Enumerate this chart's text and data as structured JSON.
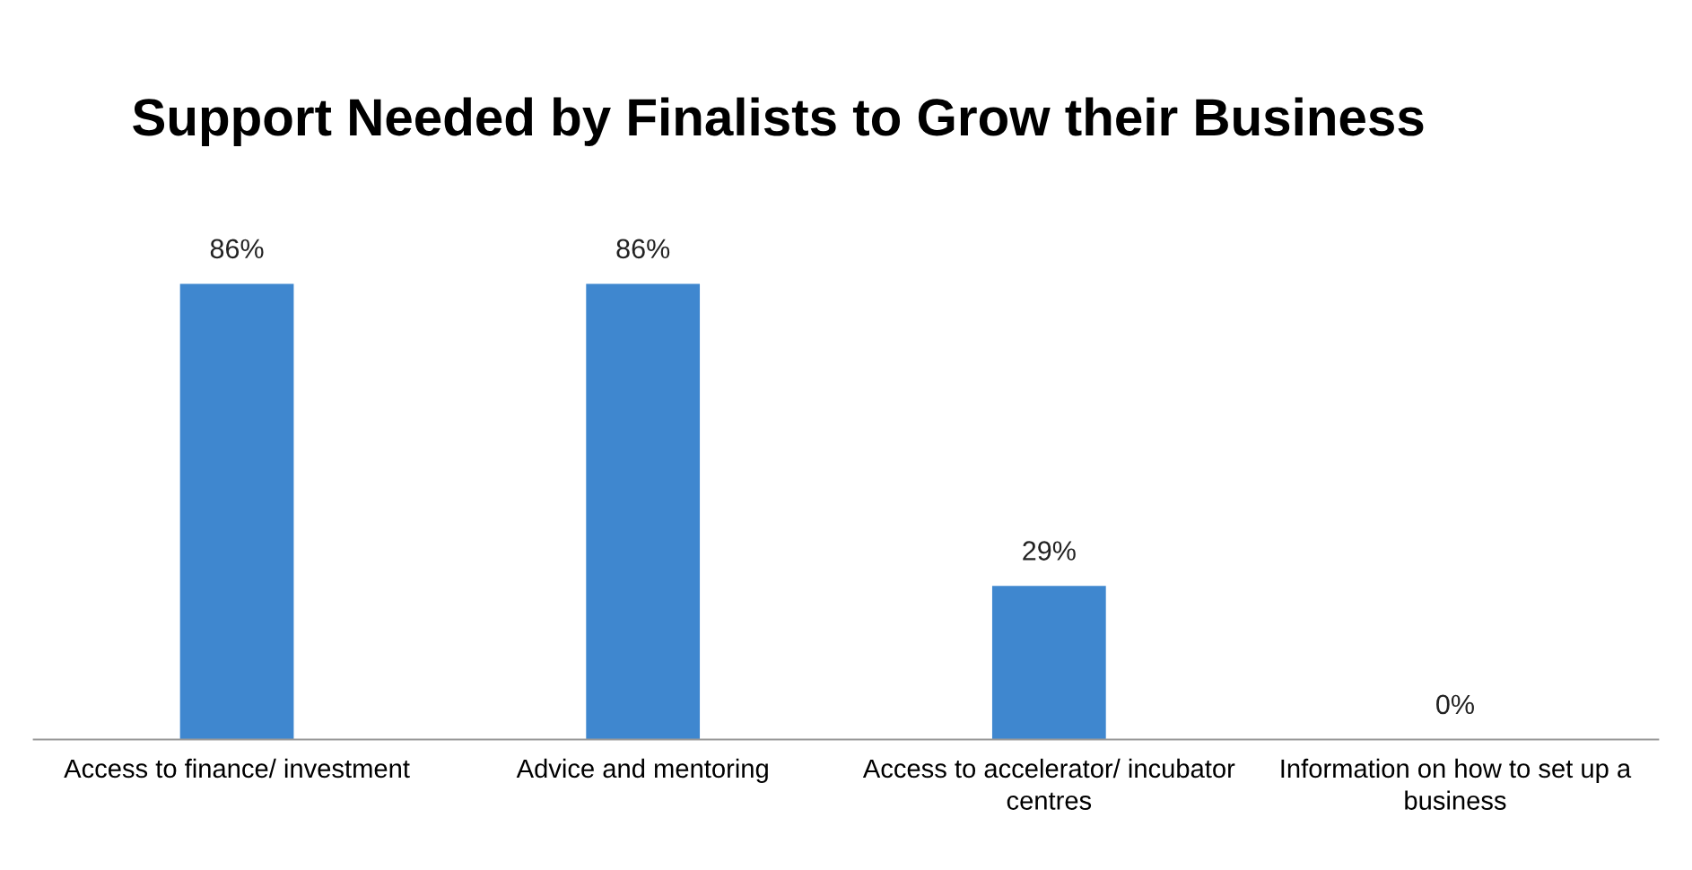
{
  "chart_data": {
    "type": "bar",
    "title": "Support Needed by Finalists to Grow their Business",
    "categories": [
      "Access to finance/ investment",
      "Advice and mentoring",
      "Access to accelerator/ incubator centres",
      "Information on how to set up a business"
    ],
    "values": [
      86,
      86,
      29,
      0
    ],
    "value_labels": [
      "86%",
      "86%",
      "29%",
      "0%"
    ],
    "color": "#3f87cf",
    "legend": false
  }
}
